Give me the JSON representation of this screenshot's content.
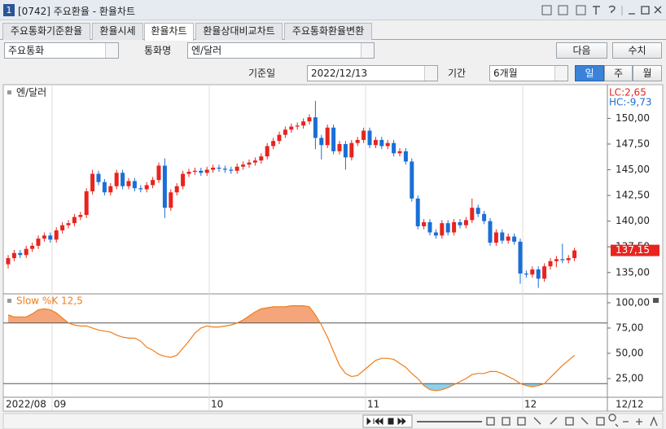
{
  "window": {
    "number": "1",
    "title": "[0742] 주요환율 - 환율차트"
  },
  "tabs": [
    "주요통화기준환율",
    "환율시세",
    "환율차트",
    "환율상대비교차트",
    "주요통화환율변환"
  ],
  "controls": {
    "group": "주요통화",
    "currency_label": "통화명",
    "currency": "엔/달러",
    "next": "다음",
    "numbers": "수치",
    "date_label": "기준일",
    "date": "2022/12/13",
    "period_label": "기간",
    "period": "6개월",
    "day": "일",
    "week": "주",
    "month": "월"
  },
  "time_axis": [
    "2022/08",
    "09",
    "10",
    "11",
    "12",
    "12/12"
  ],
  "chart_data": [
    {
      "type": "candlestick",
      "up_color": "#e8241f",
      "down_color": "#1a6fd6",
      "ylim": [
        133.0,
        153.2
      ],
      "yticks": [
        {
          "value": 150,
          "label": "150,00"
        },
        {
          "value": 147.5,
          "label": "147,50"
        },
        {
          "value": 145,
          "label": "145,00"
        },
        {
          "value": 142.5,
          "label": "142,50"
        },
        {
          "value": 140,
          "label": "140,00"
        },
        {
          "value": 137.5,
          "label": "137,50"
        },
        {
          "value": 135,
          "label": "135,00"
        }
      ],
      "lc": "LC:2,65",
      "hc": "HC:-9,73",
      "last_price": {
        "value": 137.15,
        "label": "137,15"
      },
      "series": [
        {
          "name": "엔/달러",
          "open": [
            135.8,
            136.4,
            136.9,
            136.7,
            137.3,
            137.6,
            138.3,
            138.6,
            138.2,
            139.1,
            139.6,
            139.8,
            140.4,
            140.6,
            142.9,
            144.6,
            143.8,
            142.8,
            143.4,
            144.7,
            143.4,
            143.9,
            143.2,
            143.1,
            143.5,
            144.0,
            145.4,
            141.3,
            142.8,
            143.4,
            144.6,
            144.8,
            144.9,
            144.7,
            145.0,
            145.2,
            145.1,
            145.0,
            144.9,
            145.3,
            145.5,
            145.7,
            145.9,
            146.3,
            147.3,
            147.8,
            148.4,
            148.9,
            149.2,
            149.3,
            149.7,
            150.1,
            148.1,
            147.4,
            149.1,
            146.8,
            147.5,
            146.2,
            147.6,
            147.9,
            148.8,
            147.4,
            147.9,
            147.3,
            147.6,
            146.6,
            146.8,
            145.8,
            142.2,
            139.5,
            139.9,
            138.9,
            138.6,
            139.8,
            138.9,
            139.9,
            139.6,
            140.1,
            141.3,
            140.7,
            140.0,
            137.9,
            138.9,
            138.1,
            138.5,
            138.0,
            134.9,
            134.8,
            135.3,
            134.4,
            135.6,
            136.1,
            136.3,
            136.2,
            136.4
          ],
          "high": [
            136.7,
            137.2,
            137.2,
            137.6,
            137.9,
            138.6,
            138.9,
            138.9,
            139.4,
            139.9,
            140.1,
            140.7,
            140.9,
            143.2,
            145.0,
            144.9,
            144.1,
            143.7,
            145.0,
            145.0,
            144.2,
            144.2,
            143.5,
            143.8,
            144.3,
            145.7,
            146.1,
            143.1,
            143.7,
            144.9,
            145.1,
            145.2,
            145.2,
            145.3,
            145.5,
            145.5,
            145.4,
            145.3,
            145.6,
            145.8,
            146.0,
            146.2,
            146.6,
            147.6,
            148.1,
            148.7,
            149.2,
            149.5,
            149.6,
            150.0,
            150.4,
            151.7,
            148.4,
            149.4,
            149.4,
            147.8,
            147.8,
            147.9,
            148.2,
            149.1,
            149.1,
            148.2,
            148.2,
            147.9,
            147.9,
            147.1,
            147.1,
            146.1,
            142.5,
            140.2,
            140.2,
            139.2,
            140.1,
            140.1,
            140.2,
            140.2,
            140.4,
            142.2,
            141.6,
            141.0,
            140.3,
            139.2,
            139.2,
            138.8,
            138.8,
            138.3,
            135.2,
            135.6,
            135.6,
            135.9,
            136.4,
            136.6,
            137.8,
            136.7,
            137.4
          ],
          "low": [
            135.4,
            136.1,
            136.4,
            136.4,
            137.0,
            137.3,
            138.0,
            137.9,
            137.9,
            138.8,
            139.3,
            139.5,
            140.1,
            140.3,
            142.6,
            143.5,
            142.5,
            142.5,
            143.1,
            143.1,
            143.1,
            142.9,
            142.8,
            142.8,
            143.2,
            143.7,
            140.3,
            141.0,
            142.5,
            143.1,
            144.3,
            144.5,
            144.4,
            144.4,
            144.7,
            144.8,
            144.7,
            144.6,
            144.6,
            145.0,
            145.2,
            145.4,
            145.6,
            146.0,
            147.0,
            147.5,
            148.1,
            148.6,
            148.9,
            149.0,
            149.4,
            147.0,
            146.0,
            147.1,
            146.5,
            146.5,
            145.0,
            145.9,
            147.3,
            147.6,
            147.1,
            147.1,
            147.0,
            147.0,
            146.3,
            146.3,
            145.5,
            141.9,
            139.2,
            139.2,
            138.6,
            138.3,
            138.3,
            138.6,
            138.6,
            139.3,
            139.3,
            139.8,
            140.4,
            139.7,
            137.6,
            137.6,
            137.8,
            137.8,
            137.7,
            133.9,
            134.5,
            134.5,
            133.5,
            134.1,
            135.3,
            135.5,
            135.9,
            135.9,
            136.1
          ],
          "close": [
            136.4,
            136.9,
            136.7,
            137.3,
            137.6,
            138.3,
            138.6,
            138.2,
            139.1,
            139.6,
            139.8,
            140.4,
            140.6,
            142.9,
            144.6,
            143.8,
            142.8,
            143.4,
            144.7,
            143.4,
            143.9,
            143.2,
            143.1,
            143.5,
            144.0,
            145.4,
            141.3,
            142.8,
            143.4,
            144.6,
            144.8,
            144.9,
            144.7,
            145.0,
            145.2,
            145.1,
            145.0,
            144.9,
            145.3,
            145.5,
            145.7,
            145.9,
            146.3,
            147.3,
            147.8,
            148.4,
            148.9,
            149.2,
            149.3,
            149.7,
            150.1,
            148.1,
            147.4,
            149.1,
            146.8,
            147.5,
            146.2,
            147.6,
            147.9,
            148.8,
            147.4,
            147.9,
            147.3,
            147.6,
            146.6,
            146.8,
            145.8,
            142.2,
            139.5,
            139.9,
            138.9,
            138.6,
            139.8,
            138.9,
            139.9,
            139.6,
            140.1,
            141.3,
            140.7,
            140.0,
            137.9,
            138.9,
            138.1,
            138.5,
            138.0,
            134.9,
            134.8,
            135.3,
            134.4,
            135.6,
            136.1,
            136.3,
            136.2,
            136.4,
            137.15
          ]
        }
      ]
    },
    {
      "type": "line",
      "ylim": [
        6.5,
        108
      ],
      "yticks": [
        {
          "value": 100,
          "label": "100,00"
        },
        {
          "value": 75,
          "label": "75,00"
        },
        {
          "value": 50,
          "label": "50,00"
        },
        {
          "value": 25,
          "label": "25,00"
        }
      ],
      "bands": [
        20,
        80
      ],
      "upper_fill": "#f4a67a",
      "lower_fill": "#8fd0e8",
      "series": [
        {
          "name": "Slow %K 12,5",
          "color": "#f07d1a",
          "values": [
            88,
            86,
            86,
            86,
            89,
            93,
            94,
            93,
            90,
            85,
            80,
            78,
            77,
            77,
            75,
            73,
            72,
            71,
            68,
            66,
            65,
            65,
            62,
            56,
            53,
            49,
            47,
            46,
            48,
            55,
            62,
            70,
            75,
            77,
            76,
            76,
            77,
            78,
            80,
            83,
            87,
            91,
            94,
            95,
            96,
            96,
            96,
            97,
            97,
            97,
            96,
            88,
            78,
            66,
            52,
            38,
            30,
            27,
            28,
            33,
            38,
            43,
            45,
            45,
            44,
            40,
            36,
            30,
            25,
            18,
            14,
            13,
            14,
            16,
            19,
            22,
            25,
            29,
            30,
            30,
            32,
            32,
            30,
            27,
            24,
            20,
            18,
            17,
            18,
            20,
            26,
            32,
            38,
            43,
            48
          ]
        }
      ]
    }
  ]
}
